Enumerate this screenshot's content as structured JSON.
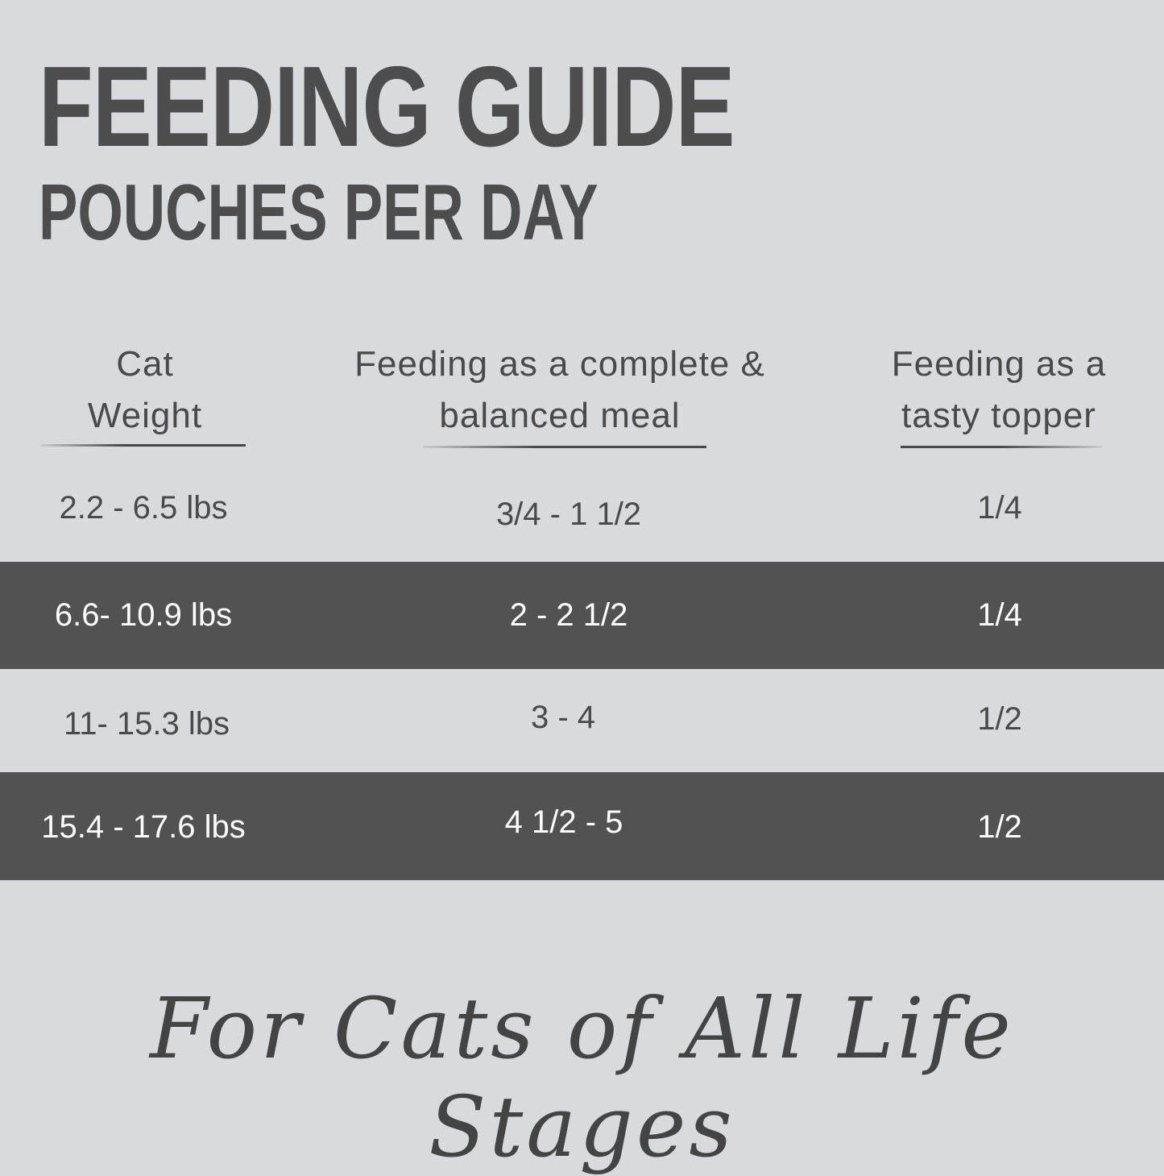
{
  "header": {
    "title": "FEEDING GUIDE",
    "subtitle": "POUCHES PER DAY"
  },
  "table": {
    "columns": [
      {
        "line1": "Cat",
        "line2": "Weight"
      },
      {
        "line1": "Feeding as a complete &",
        "line2": "balanced meal"
      },
      {
        "line1": "Feeding as a",
        "line2": "tasty topper"
      }
    ],
    "rows": [
      {
        "weight": "2.2 - 6.5 lbs",
        "meal": "3/4 - 1 1/2",
        "topper": "1/4",
        "highlighted": false
      },
      {
        "weight": "6.6- 10.9 lbs",
        "meal": "2 - 2 1/2",
        "topper": "1/4",
        "highlighted": true
      },
      {
        "weight": "11- 15.3 lbs",
        "meal": "3 - 4",
        "topper": "1/2",
        "highlighted": false
      },
      {
        "weight": "15.4 - 17.6 lbs",
        "meal": "4 1/2 - 5",
        "topper": "1/2",
        "highlighted": true
      }
    ]
  },
  "tagline": "For Cats of All Life Stages",
  "colors": {
    "background": "#d9dadc",
    "highlight_row": "#525252",
    "text": "#4a4a4a"
  }
}
